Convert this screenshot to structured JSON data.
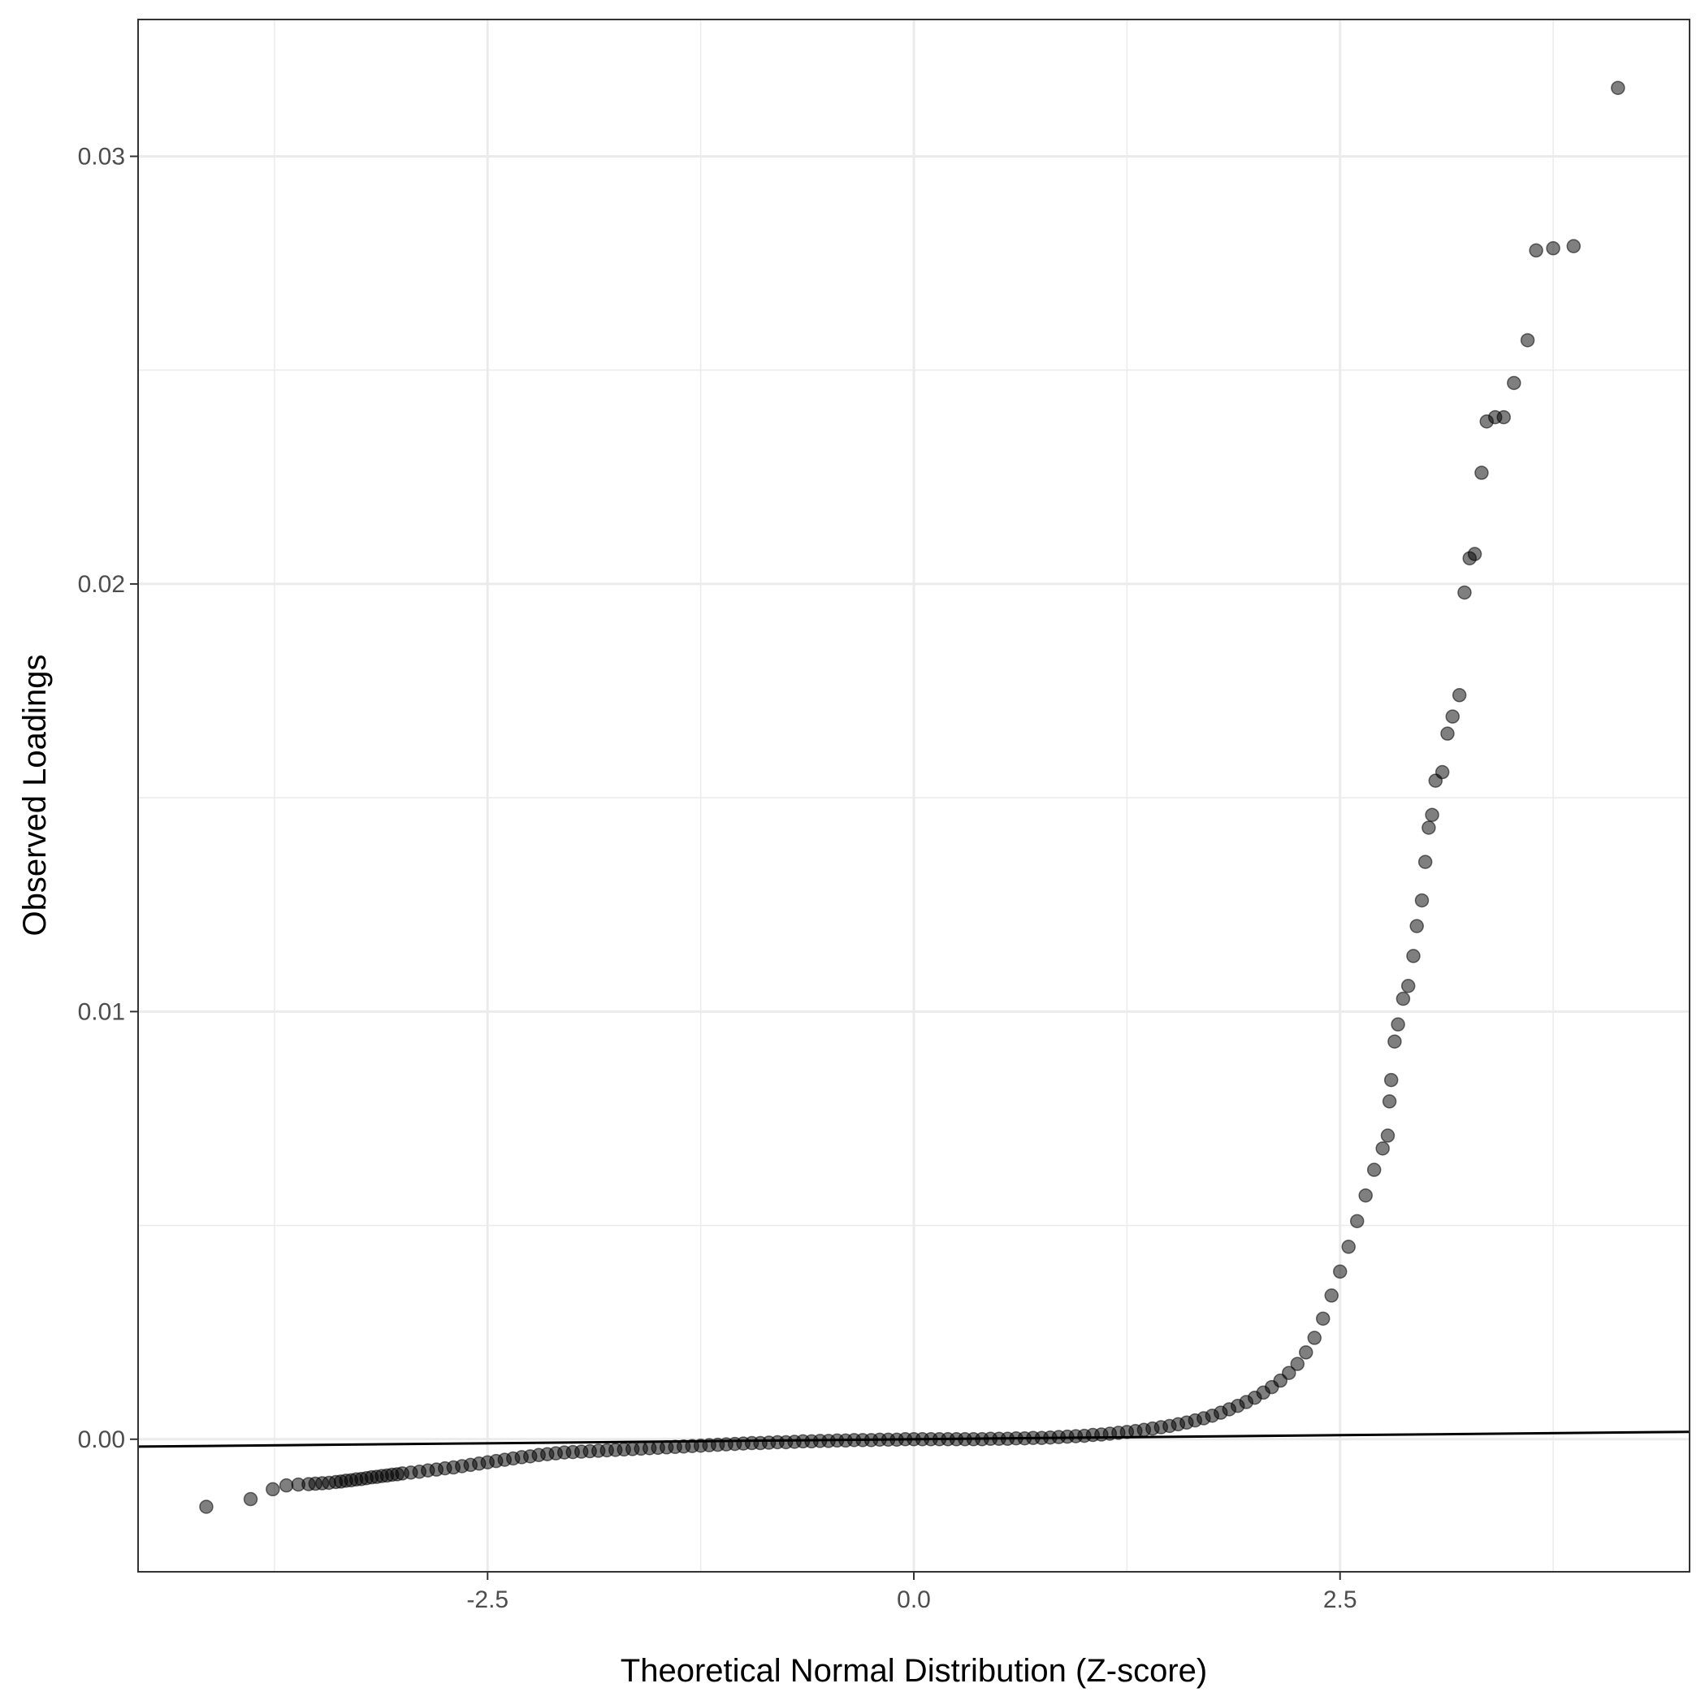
{
  "chart_data": {
    "type": "scatter",
    "xlabel": "Theoretical Normal Distribution (Z-score)",
    "ylabel": "Observed Loadings",
    "xlim": [
      -4.55,
      4.55
    ],
    "ylim": [
      -0.0031,
      0.0332
    ],
    "x_ticks": [
      {
        "value": -2.5,
        "label": "-2.5"
      },
      {
        "value": 0.0,
        "label": "0.0"
      },
      {
        "value": 2.5,
        "label": "2.5"
      }
    ],
    "y_ticks": [
      {
        "value": 0.0,
        "label": "0.00"
      },
      {
        "value": 0.01,
        "label": "0.01"
      },
      {
        "value": 0.02,
        "label": "0.02"
      },
      {
        "value": 0.03,
        "label": "0.03"
      }
    ],
    "grid": true,
    "legend": "none",
    "point_color": "#000000",
    "point_alpha": 0.5,
    "line_color": "#000000",
    "reference_line": {
      "intercept": 0.0,
      "slope": 3.8e-05
    },
    "points": [
      [
        -4.15,
        -0.00158
      ],
      [
        -3.89,
        -0.0014
      ],
      [
        -3.76,
        -0.00117
      ],
      [
        -3.68,
        -0.00108
      ],
      [
        -3.61,
        -0.00106
      ],
      [
        -3.55,
        -0.00105
      ],
      [
        -3.51,
        -0.00104
      ],
      [
        -3.47,
        -0.00103
      ],
      [
        -3.43,
        -0.00102
      ],
      [
        -3.39,
        -0.001
      ],
      [
        -3.36,
        -0.00099
      ],
      [
        -3.33,
        -0.00097
      ],
      [
        -3.3,
        -0.00096
      ],
      [
        -3.27,
        -0.00094
      ],
      [
        -3.24,
        -0.00093
      ],
      [
        -3.21,
        -0.00091
      ],
      [
        -3.18,
        -0.00089
      ],
      [
        -3.15,
        -0.00088
      ],
      [
        -3.12,
        -0.00086
      ],
      [
        -3.09,
        -0.00085
      ],
      [
        -3.06,
        -0.00083
      ],
      [
        -3.03,
        -0.00082
      ],
      [
        -3.0,
        -0.0008
      ],
      [
        -2.95,
        -0.00078
      ],
      [
        -2.9,
        -0.00076
      ],
      [
        -2.85,
        -0.00073
      ],
      [
        -2.8,
        -0.00071
      ],
      [
        -2.75,
        -0.00068
      ],
      [
        -2.7,
        -0.00066
      ],
      [
        -2.65,
        -0.00063
      ],
      [
        -2.6,
        -0.0006
      ],
      [
        -2.55,
        -0.00057
      ],
      [
        -2.5,
        -0.00054
      ],
      [
        -2.45,
        -0.00051
      ],
      [
        -2.4,
        -0.00048
      ],
      [
        -2.35,
        -0.00045
      ],
      [
        -2.3,
        -0.00042
      ],
      [
        -2.25,
        -0.0004
      ],
      [
        -2.2,
        -0.00037
      ],
      [
        -2.15,
        -0.00035
      ],
      [
        -2.1,
        -0.00033
      ],
      [
        -2.05,
        -0.00031
      ],
      [
        -2.0,
        -0.0003
      ],
      [
        -1.95,
        -0.00029
      ],
      [
        -1.9,
        -0.00028
      ],
      [
        -1.85,
        -0.00027
      ],
      [
        -1.8,
        -0.00026
      ],
      [
        -1.75,
        -0.00025
      ],
      [
        -1.7,
        -0.00024
      ],
      [
        -1.65,
        -0.00023
      ],
      [
        -1.6,
        -0.00022
      ],
      [
        -1.55,
        -0.00021
      ],
      [
        -1.5,
        -0.0002
      ],
      [
        -1.45,
        -0.00019
      ],
      [
        -1.4,
        -0.00018
      ],
      [
        -1.35,
        -0.00017
      ],
      [
        -1.3,
        -0.00016
      ],
      [
        -1.25,
        -0.00015
      ],
      [
        -1.2,
        -0.00014
      ],
      [
        -1.15,
        -0.00013
      ],
      [
        -1.1,
        -0.00012
      ],
      [
        -1.05,
        -0.00011
      ],
      [
        -1.0,
        -0.0001
      ],
      [
        -0.95,
        -9e-05
      ],
      [
        -0.9,
        -9e-05
      ],
      [
        -0.85,
        -8e-05
      ],
      [
        -0.8,
        -7e-05
      ],
      [
        -0.75,
        -7e-05
      ],
      [
        -0.7,
        -6e-05
      ],
      [
        -0.65,
        -5e-05
      ],
      [
        -0.6,
        -5e-05
      ],
      [
        -0.55,
        -4e-05
      ],
      [
        -0.5,
        -4e-05
      ],
      [
        -0.45,
        -3e-05
      ],
      [
        -0.4,
        -3e-05
      ],
      [
        -0.35,
        -2e-05
      ],
      [
        -0.3,
        -2e-05
      ],
      [
        -0.25,
        -2e-05
      ],
      [
        -0.2,
        -1e-05
      ],
      [
        -0.15,
        -1e-05
      ],
      [
        -0.1,
        -1e-05
      ],
      [
        -0.05,
        0.0
      ],
      [
        0.0,
        0.0
      ],
      [
        0.05,
        0.0
      ],
      [
        0.1,
        0.0
      ],
      [
        0.15,
        0.0
      ],
      [
        0.2,
        0.0
      ],
      [
        0.25,
        0.0
      ],
      [
        0.3,
        0.0
      ],
      [
        0.35,
        0.0
      ],
      [
        0.4,
        0.0
      ],
      [
        0.45,
        1e-05
      ],
      [
        0.5,
        1e-05
      ],
      [
        0.55,
        1e-05
      ],
      [
        0.6,
        2e-05
      ],
      [
        0.65,
        2e-05
      ],
      [
        0.7,
        3e-05
      ],
      [
        0.75,
        3e-05
      ],
      [
        0.8,
        4e-05
      ],
      [
        0.85,
        5e-05
      ],
      [
        0.9,
        6e-05
      ],
      [
        0.95,
        7e-05
      ],
      [
        1.0,
        8e-05
      ],
      [
        1.05,
        0.0001
      ],
      [
        1.1,
        0.00011
      ],
      [
        1.15,
        0.00013
      ],
      [
        1.2,
        0.00015
      ],
      [
        1.25,
        0.00017
      ],
      [
        1.3,
        0.00019
      ],
      [
        1.35,
        0.00022
      ],
      [
        1.4,
        0.00025
      ],
      [
        1.45,
        0.00028
      ],
      [
        1.5,
        0.00031
      ],
      [
        1.55,
        0.00035
      ],
      [
        1.6,
        0.00039
      ],
      [
        1.65,
        0.00044
      ],
      [
        1.7,
        0.00049
      ],
      [
        1.75,
        0.00055
      ],
      [
        1.8,
        0.00062
      ],
      [
        1.85,
        0.0007
      ],
      [
        1.9,
        0.00078
      ],
      [
        1.95,
        0.00087
      ],
      [
        2.0,
        0.00097
      ],
      [
        2.05,
        0.00109
      ],
      [
        2.1,
        0.00122
      ],
      [
        2.15,
        0.00137
      ],
      [
        2.2,
        0.00155
      ],
      [
        2.25,
        0.00176
      ],
      [
        2.3,
        0.00203
      ],
      [
        2.35,
        0.00237
      ],
      [
        2.4,
        0.00282
      ],
      [
        2.45,
        0.00336
      ],
      [
        2.5,
        0.00392
      ],
      [
        2.55,
        0.0045
      ],
      [
        2.6,
        0.0051
      ],
      [
        2.65,
        0.0057
      ],
      [
        2.7,
        0.0063
      ],
      [
        2.75,
        0.0068
      ],
      [
        2.78,
        0.0071
      ],
      [
        2.79,
        0.0079
      ],
      [
        2.8,
        0.0084
      ],
      [
        2.82,
        0.0093
      ],
      [
        2.84,
        0.0097
      ],
      [
        2.87,
        0.0103
      ],
      [
        2.9,
        0.0106
      ],
      [
        2.93,
        0.0113
      ],
      [
        2.95,
        0.012
      ],
      [
        2.98,
        0.0126
      ],
      [
        3.0,
        0.0135
      ],
      [
        3.02,
        0.0143
      ],
      [
        3.04,
        0.0146
      ],
      [
        3.06,
        0.0154
      ],
      [
        3.1,
        0.0156
      ],
      [
        3.13,
        0.0165
      ],
      [
        3.16,
        0.0169
      ],
      [
        3.2,
        0.0174
      ],
      [
        3.23,
        0.0198
      ],
      [
        3.26,
        0.0206
      ],
      [
        3.29,
        0.0207
      ],
      [
        3.33,
        0.0226
      ],
      [
        3.36,
        0.0238
      ],
      [
        3.41,
        0.0239
      ],
      [
        3.46,
        0.0239
      ],
      [
        3.52,
        0.0247
      ],
      [
        3.6,
        0.0257
      ],
      [
        3.65,
        0.0278
      ],
      [
        3.75,
        0.02785
      ],
      [
        3.87,
        0.0279
      ],
      [
        4.13,
        0.0316
      ]
    ]
  }
}
